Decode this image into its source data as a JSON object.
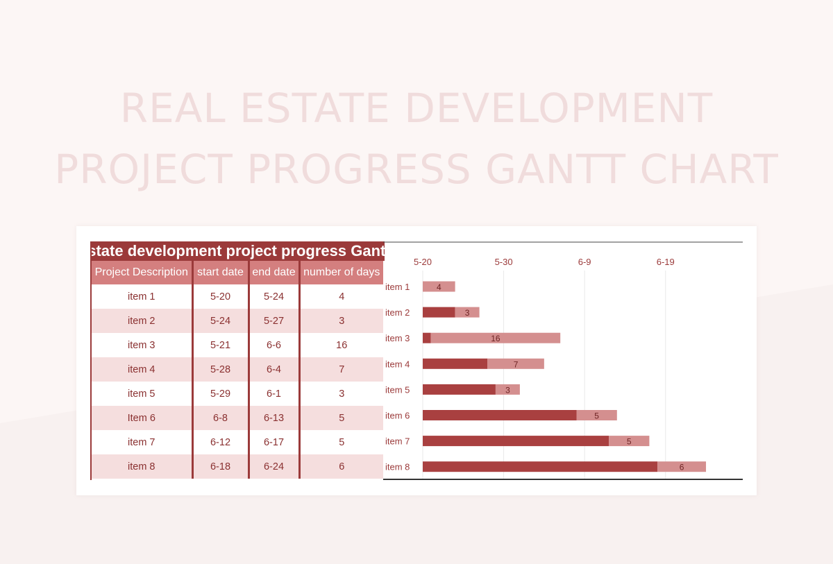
{
  "page": {
    "title_line1": "REAL ESTATE DEVELOPMENT",
    "title_line2": "PROJECT PROGRESS GANTT CHART"
  },
  "table": {
    "title": "Real estate development project progress Gantt chart",
    "headers": [
      "Project Description",
      "start date",
      "end date",
      "number of days"
    ],
    "rows": [
      [
        "item 1",
        "5-20",
        "5-24",
        "4"
      ],
      [
        "item 2",
        "5-24",
        "5-27",
        "3"
      ],
      [
        "item 3",
        "5-21",
        "6-6",
        "16"
      ],
      [
        "item 4",
        "5-28",
        "6-4",
        "7"
      ],
      [
        "item 5",
        "5-29",
        "6-1",
        "3"
      ],
      [
        "Item 6",
        "6-8",
        "6-13",
        "5"
      ],
      [
        "item 7",
        "6-12",
        "6-17",
        "5"
      ],
      [
        "item 8",
        "6-18",
        "6-24",
        "6"
      ]
    ]
  },
  "colors": {
    "brand": "#9b3a3a",
    "offset_bar": "#a94040",
    "duration_bar": "#d48f8f",
    "row_alt": "#f5dede",
    "title_faint": "#f0dcdc"
  },
  "chart_data": {
    "type": "bar",
    "orientation": "horizontal",
    "stacked": true,
    "categories": [
      "item 1",
      "item 2",
      "item 3",
      "item 4",
      "item 5",
      "item 6",
      "item 7",
      "item 8"
    ],
    "x_ticks": [
      "5-20",
      "5-30",
      "6-9",
      "6-19"
    ],
    "x_tick_values": [
      0,
      10,
      20,
      30
    ],
    "xlim": [
      0,
      38
    ],
    "series": [
      {
        "role": "offset",
        "values": [
          0,
          4,
          1,
          8,
          9,
          19,
          23,
          29
        ]
      },
      {
        "role": "duration",
        "values": [
          4,
          3,
          16,
          7,
          3,
          5,
          5,
          6
        ]
      }
    ],
    "data_labels": [
      "4",
      "3",
      "16",
      "7",
      "3",
      "5",
      "5",
      "6"
    ],
    "grid": "vertical",
    "x_axis_position": "top"
  }
}
